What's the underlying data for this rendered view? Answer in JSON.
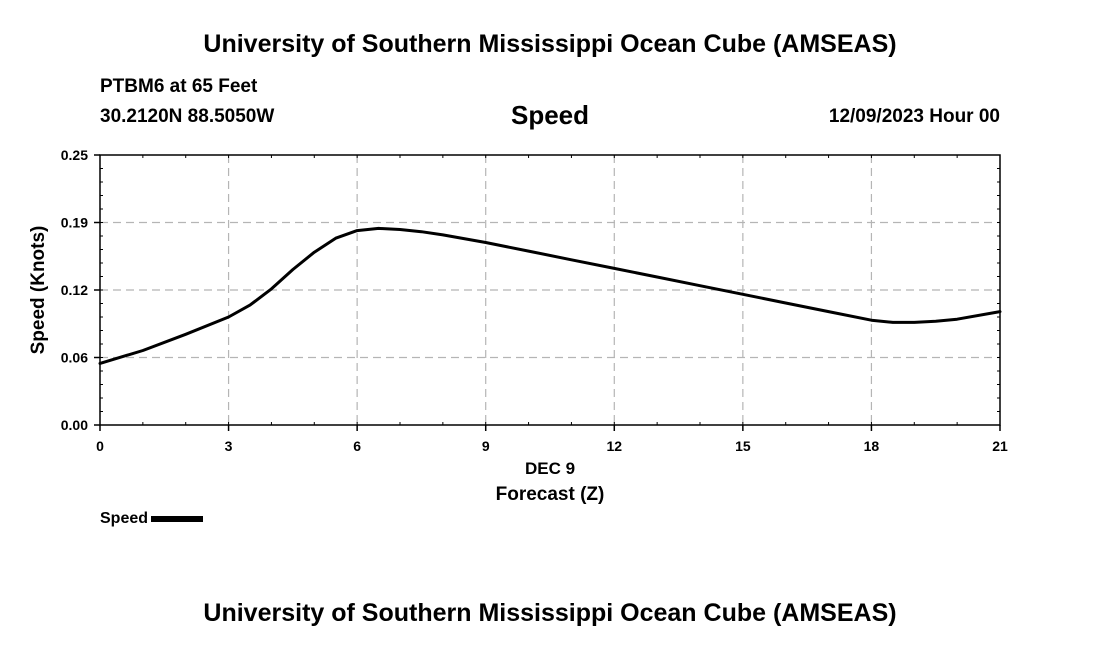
{
  "header": {
    "title": "University of Southern Mississippi Ocean Cube (AMSEAS)",
    "station": "PTBM6 at 65 Feet",
    "coords": "30.2120N  88.5050W",
    "chart_heading": "Speed",
    "datetime": "12/09/2023 Hour 00"
  },
  "footer": {
    "title": "University of Southern Mississippi Ocean Cube (AMSEAS)"
  },
  "legend": {
    "label": "Speed"
  },
  "chart_data": {
    "type": "line",
    "title": "Speed",
    "xlabel": "Forecast (Z)",
    "xsublabel": "DEC 9",
    "ylabel": "Speed (Knots)",
    "xlim": [
      0,
      21
    ],
    "ylim": [
      0,
      0.25
    ],
    "xticks": [
      0,
      3,
      6,
      9,
      12,
      15,
      18,
      21
    ],
    "xtick_labels": [
      "0",
      "3",
      "6",
      "9",
      "12",
      "15",
      "18",
      "21"
    ],
    "yticks": [
      0,
      0.0625,
      0.125,
      0.1875,
      0.25
    ],
    "ytick_labels": [
      "0.00",
      "0.06",
      "0.12",
      "0.19",
      "0.25"
    ],
    "grid": true,
    "series": [
      {
        "name": "Speed",
        "color": "#000000",
        "x": [
          0,
          1,
          2,
          3,
          3.5,
          4,
          4.5,
          5,
          5.5,
          6,
          6.5,
          7,
          7.5,
          8,
          9,
          10,
          11,
          12,
          13,
          14,
          15,
          16,
          17,
          18,
          18.5,
          19,
          19.5,
          20,
          21
        ],
        "values": [
          0.057,
          0.069,
          0.084,
          0.1,
          0.111,
          0.126,
          0.144,
          0.16,
          0.173,
          0.18,
          0.182,
          0.181,
          0.179,
          0.176,
          0.169,
          0.161,
          0.153,
          0.145,
          0.137,
          0.129,
          0.121,
          0.113,
          0.105,
          0.097,
          0.095,
          0.095,
          0.096,
          0.098,
          0.105
        ]
      }
    ]
  }
}
